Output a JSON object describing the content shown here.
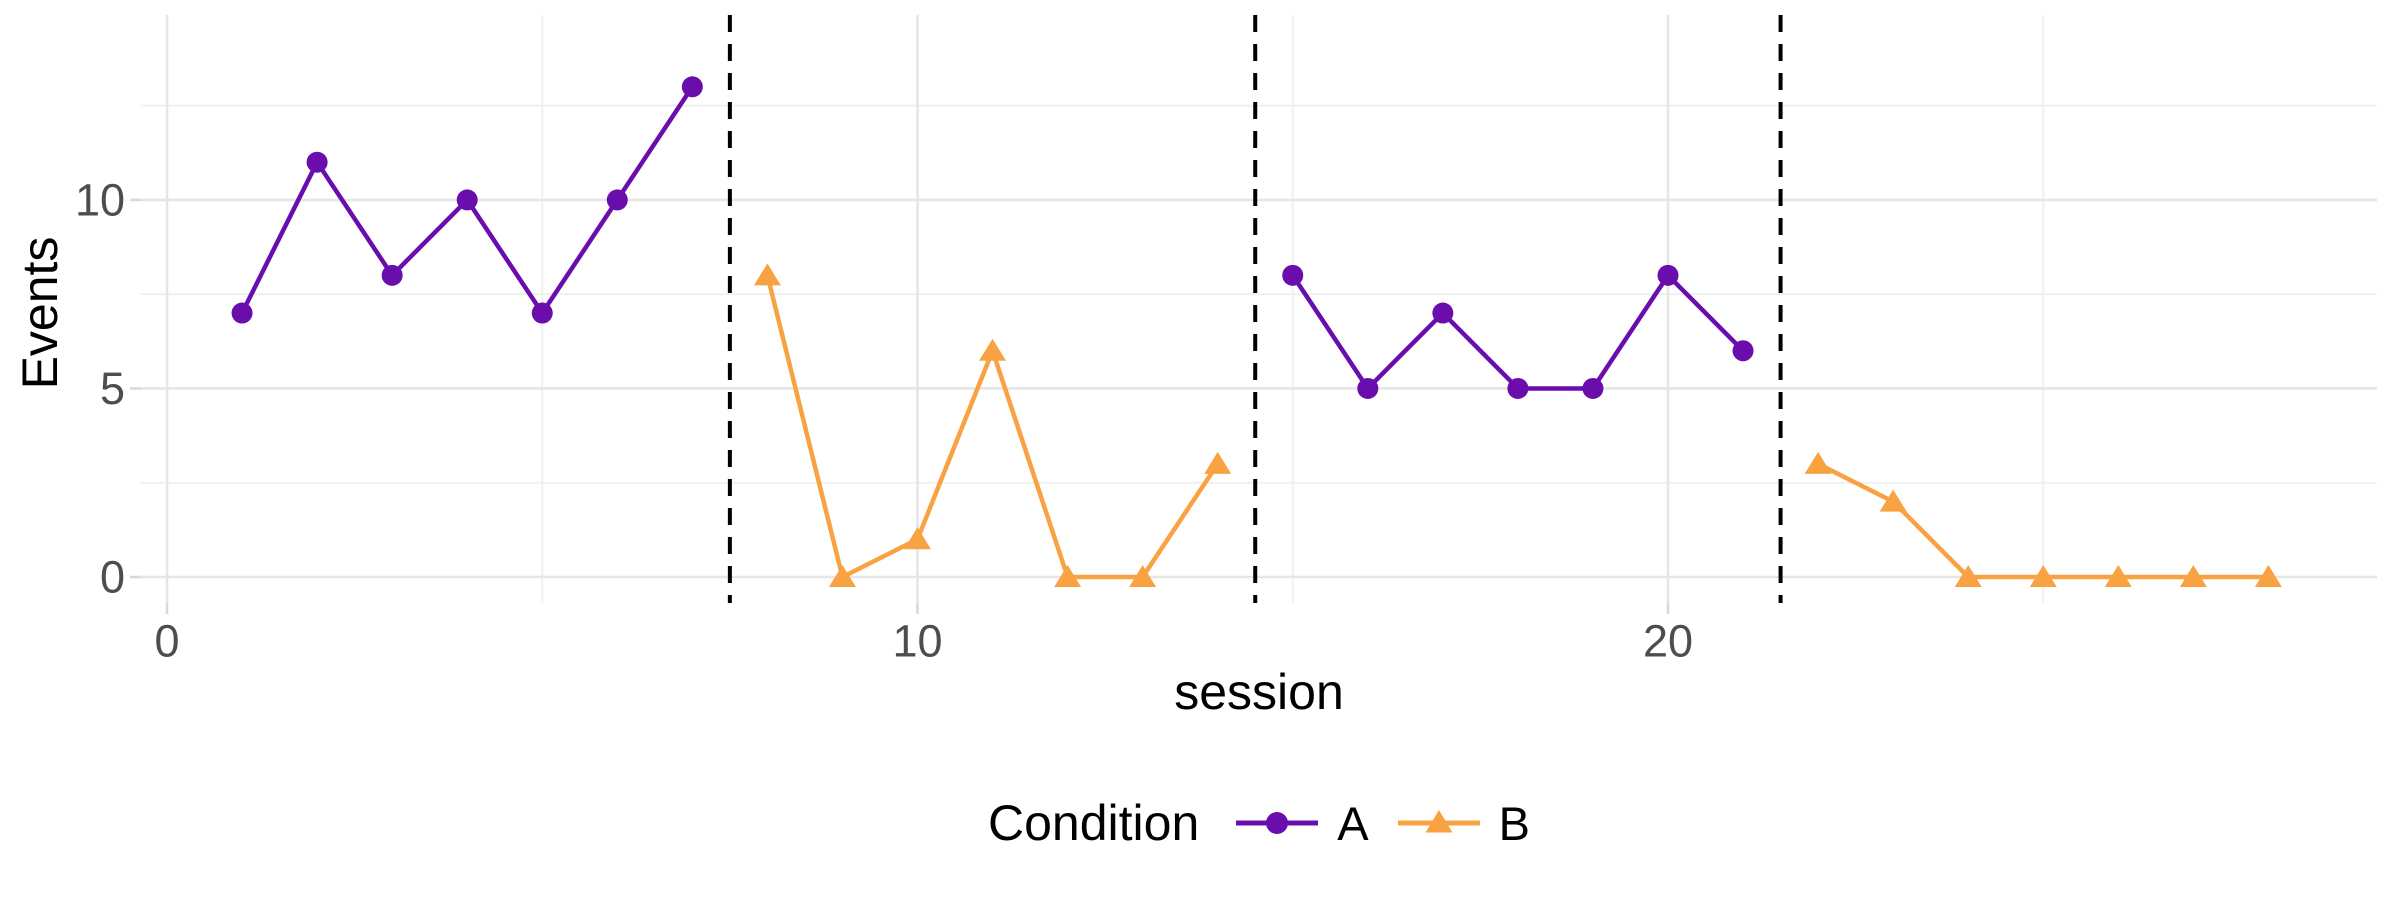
{
  "chart_data": {
    "type": "line",
    "title": "",
    "xlabel": "session",
    "ylabel": "Events",
    "x_ticks": [
      0,
      10,
      20
    ],
    "x_minor_ticks": [
      5,
      15,
      25
    ],
    "y_ticks": [
      0,
      5,
      10
    ],
    "y_minor_ticks": [
      2.5,
      7.5,
      12.5
    ],
    "xlim": [
      -0.35,
      29.45
    ],
    "ylim": [
      -0.7,
      14.9
    ],
    "grid": "major+minor",
    "legend_position": "bottom",
    "legend_title": "Condition",
    "phase_change_lines_x": [
      7.5,
      14.5,
      21.5
    ],
    "series": [
      {
        "name": "A",
        "color": "#6A0DAD",
        "marker": "circle",
        "segments": [
          {
            "x": [
              1,
              2,
              3,
              4,
              5,
              6,
              7
            ],
            "y": [
              7,
              11,
              8,
              10,
              7,
              10,
              13
            ]
          },
          {
            "x": [
              15,
              16,
              17,
              18,
              19,
              20,
              21
            ],
            "y": [
              8,
              5,
              7,
              5,
              5,
              8,
              6
            ]
          }
        ]
      },
      {
        "name": "B",
        "color": "#F9A242",
        "marker": "triangle",
        "segments": [
          {
            "x": [
              8,
              9,
              10,
              11,
              12,
              13,
              14
            ],
            "y": [
              8,
              0,
              1,
              6,
              0,
              0,
              3
            ]
          },
          {
            "x": [
              22,
              23,
              24,
              25,
              26,
              27,
              28
            ],
            "y": [
              3,
              2,
              0,
              0,
              0,
              0,
              0
            ]
          }
        ]
      }
    ],
    "colors": {
      "grid_major": "#E6E6E6",
      "grid_minor": "#EFEFEF",
      "axis_tick_mark": "#D9D9D9",
      "axis_text": "#4D4D4D",
      "axis_title": "#000000",
      "phase_line": "#000000",
      "background": "#FFFFFF"
    }
  }
}
